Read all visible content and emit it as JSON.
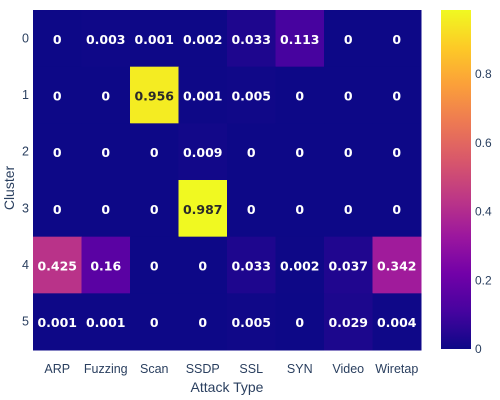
{
  "chart_data": {
    "type": "heatmap",
    "title": "",
    "xlabel": "Attack Type",
    "ylabel": "Cluster",
    "x_categories": [
      "ARP",
      "Fuzzing",
      "Scan",
      "SSDP",
      "SSL",
      "SYN",
      "Video",
      "Wiretap"
    ],
    "y_categories": [
      "0",
      "1",
      "2",
      "3",
      "4",
      "5"
    ],
    "values": [
      [
        0,
        0.003,
        0.001,
        0.002,
        0.033,
        0.113,
        0,
        0
      ],
      [
        0,
        0,
        0.956,
        0.001,
        0.005,
        0,
        0,
        0
      ],
      [
        0,
        0,
        0,
        0.009,
        0,
        0,
        0,
        0
      ],
      [
        0,
        0,
        0,
        0.987,
        0,
        0,
        0,
        0
      ],
      [
        0.425,
        0.16,
        0,
        0,
        0.033,
        0.002,
        0.037,
        0.342
      ],
      [
        0.001,
        0.001,
        0,
        0,
        0.005,
        0,
        0.029,
        0.004
      ]
    ],
    "text": [
      [
        "0",
        "0.003",
        "0.001",
        "0.002",
        "0.033",
        "0.113",
        "0",
        "0"
      ],
      [
        "0",
        "0",
        "0.956",
        "0.001",
        "0.005",
        "0",
        "0",
        "0"
      ],
      [
        "0",
        "0",
        "0",
        "0.009",
        "0",
        "0",
        "0",
        "0"
      ],
      [
        "0",
        "0",
        "0",
        "0.987",
        "0",
        "0",
        "0",
        "0"
      ],
      [
        "0.425",
        "0.16",
        "0",
        "0",
        "0.033",
        "0.002",
        "0.037",
        "0.342"
      ],
      [
        "0.001",
        "0.001",
        "0",
        "0",
        "0.005",
        "0",
        "0.029",
        "0.004"
      ]
    ],
    "colorscale": "plasma",
    "zmin": 0,
    "zmax": 0.987,
    "colorbar_ticks": [
      "0",
      "0.2",
      "0.4",
      "0.6",
      "0.8"
    ],
    "colorbar_tick_values": [
      0,
      0.2,
      0.4,
      0.6,
      0.8
    ]
  }
}
